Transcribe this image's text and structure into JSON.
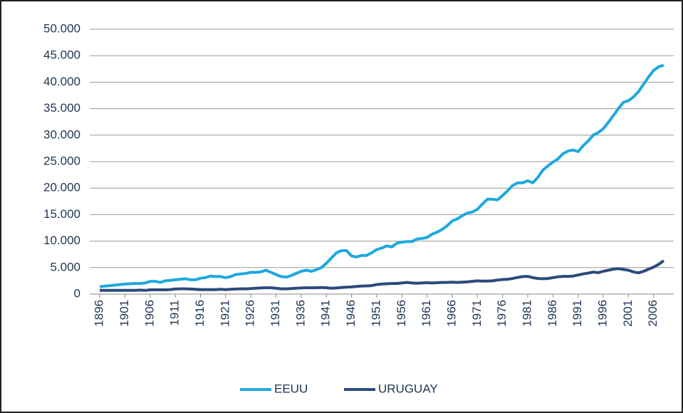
{
  "chart_data": {
    "type": "line",
    "x": [
      1896,
      1897,
      1898,
      1899,
      1900,
      1901,
      1902,
      1903,
      1904,
      1905,
      1906,
      1907,
      1908,
      1909,
      1910,
      1911,
      1912,
      1913,
      1914,
      1915,
      1916,
      1917,
      1918,
      1919,
      1920,
      1921,
      1922,
      1923,
      1924,
      1925,
      1926,
      1927,
      1928,
      1929,
      1930,
      1931,
      1932,
      1933,
      1934,
      1935,
      1936,
      1937,
      1938,
      1939,
      1940,
      1941,
      1942,
      1943,
      1944,
      1945,
      1946,
      1947,
      1948,
      1949,
      1950,
      1951,
      1952,
      1953,
      1954,
      1955,
      1956,
      1957,
      1958,
      1959,
      1960,
      1961,
      1962,
      1963,
      1964,
      1965,
      1966,
      1967,
      1968,
      1969,
      1970,
      1971,
      1972,
      1973,
      1974,
      1975,
      1976,
      1977,
      1978,
      1979,
      1980,
      1981,
      1982,
      1983,
      1984,
      1985,
      1986,
      1987,
      1988,
      1989,
      1990,
      1991,
      1992,
      1993,
      1994,
      1995,
      1996,
      1997,
      1998,
      1999,
      2000,
      2001,
      2002,
      2003,
      2004,
      2005,
      2006,
      2007,
      2008
    ],
    "series": [
      {
        "name": "EEUU",
        "color": "#1fa8e0",
        "values": [
          1400,
          1500,
          1600,
          1700,
          1800,
          1900,
          1950,
          2000,
          2000,
          2100,
          2400,
          2400,
          2200,
          2500,
          2600,
          2700,
          2800,
          2900,
          2700,
          2700,
          3000,
          3100,
          3400,
          3300,
          3300,
          3100,
          3300,
          3700,
          3800,
          3900,
          4100,
          4100,
          4200,
          4500,
          4100,
          3700,
          3300,
          3200,
          3500,
          3900,
          4300,
          4500,
          4300,
          4600,
          5000,
          5800,
          6800,
          7800,
          8200,
          8200,
          7200,
          7000,
          7300,
          7300,
          7800,
          8400,
          8700,
          9100,
          8900,
          9600,
          9800,
          9900,
          9900,
          10400,
          10500,
          10700,
          11300,
          11700,
          12200,
          12900,
          13800,
          14200,
          14800,
          15300,
          15500,
          16000,
          17000,
          17900,
          17900,
          17800,
          18600,
          19500,
          20500,
          21000,
          21000,
          21400,
          21000,
          22000,
          23400,
          24200,
          24900,
          25500,
          26500,
          27000,
          27200,
          26900,
          28000,
          28900,
          30000,
          30500,
          31200,
          32400,
          33700,
          35000,
          36200,
          36500,
          37200,
          38200,
          39600,
          41000,
          42200,
          42900,
          43200
        ]
      },
      {
        "name": "URUGUAY",
        "color": "#2c4a7c",
        "values": [
          700,
          700,
          700,
          700,
          700,
          700,
          700,
          700,
          750,
          700,
          800,
          800,
          800,
          800,
          850,
          950,
          1000,
          1000,
          950,
          900,
          850,
          850,
          850,
          850,
          900,
          850,
          900,
          950,
          1000,
          1000,
          1050,
          1100,
          1150,
          1200,
          1200,
          1100,
          1000,
          1000,
          1050,
          1100,
          1150,
          1200,
          1200,
          1200,
          1250,
          1200,
          1100,
          1150,
          1250,
          1300,
          1350,
          1450,
          1500,
          1550,
          1600,
          1800,
          1900,
          1950,
          2000,
          2000,
          2100,
          2200,
          2100,
          2050,
          2100,
          2150,
          2100,
          2150,
          2200,
          2200,
          2250,
          2200,
          2250,
          2300,
          2400,
          2500,
          2450,
          2450,
          2500,
          2650,
          2750,
          2800,
          2950,
          3150,
          3300,
          3350,
          3100,
          2950,
          2900,
          2950,
          3100,
          3250,
          3350,
          3350,
          3400,
          3600,
          3800,
          3950,
          4150,
          4050,
          4300,
          4500,
          4700,
          4800,
          4650,
          4500,
          4200,
          4000,
          4300,
          4700,
          5100,
          5600,
          6300
        ]
      }
    ],
    "xlim": [
      1894,
      2010
    ],
    "xticks": [
      1896,
      1901,
      1906,
      1911,
      1916,
      1921,
      1926,
      1931,
      1936,
      1941,
      1946,
      1951,
      1956,
      1961,
      1966,
      1971,
      1976,
      1981,
      1986,
      1991,
      1996,
      2001,
      2006
    ],
    "ylim": [
      0,
      50000
    ],
    "yticks": [
      0,
      {
        "value": 5000,
        "label": "5.000"
      },
      {
        "value": 10000,
        "label": "10.000"
      },
      {
        "value": 15000,
        "label": "15.000"
      },
      {
        "value": 20000,
        "label": "20.000"
      },
      {
        "value": 25000,
        "label": "25.000"
      },
      {
        "value": 30000,
        "label": "30.000"
      },
      {
        "value": 35000,
        "label": "35.000"
      },
      {
        "value": 40000,
        "label": "40.000"
      },
      {
        "value": 45000,
        "label": "45.000"
      },
      {
        "value": 50000,
        "label": "50.000"
      }
    ],
    "grid": true,
    "legend": "bottom"
  }
}
